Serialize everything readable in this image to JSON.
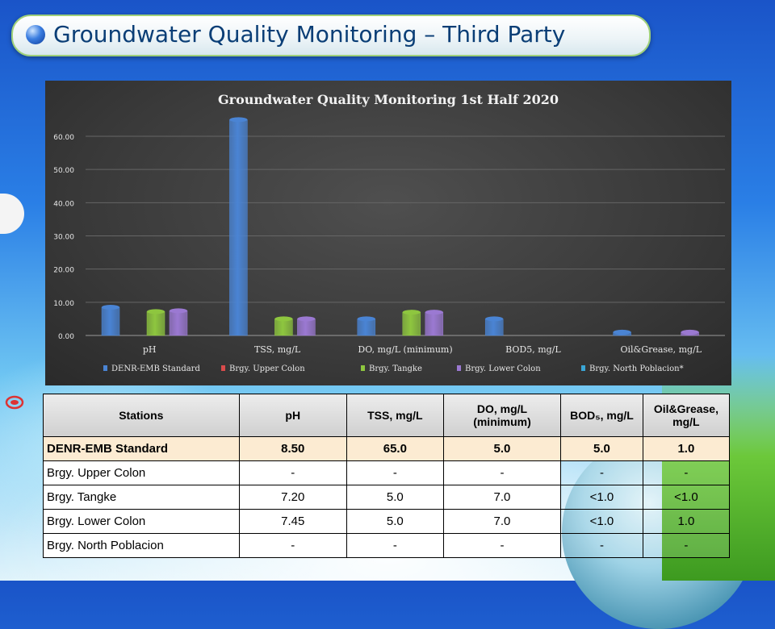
{
  "slide": {
    "title": "Groundwater Quality Monitoring – Third Party"
  },
  "colors": {
    "denr": "#4a84d4",
    "upper_colon": "#d94b4b",
    "tangke": "#8ec63f",
    "lower_colon": "#9b79d2",
    "north_poblacion": "#3aa6d6"
  },
  "chart_data": {
    "type": "bar",
    "title": "Groundwater Quality Monitoring 1st Half 2020",
    "categories": [
      "pH",
      "TSS, mg/L",
      "DO, mg/L (minimum)",
      "BOD5, mg/L",
      "Oil&Grease, mg/L"
    ],
    "ylim": [
      0,
      60
    ],
    "yticks": [
      "0.00",
      "10.00",
      "20.00",
      "30.00",
      "40.00",
      "50.00",
      "60.00"
    ],
    "ytick_values": [
      0,
      10,
      20,
      30,
      40,
      50,
      60
    ],
    "grid": true,
    "legend_position": "bottom",
    "series": [
      {
        "name": "DENR-EMB Standard",
        "values": [
          8.5,
          65.0,
          5.0,
          5.0,
          1.0
        ]
      },
      {
        "name": "Brgy. Upper Colon",
        "values": [
          null,
          null,
          null,
          null,
          null
        ]
      },
      {
        "name": "Brgy. Tangke",
        "values": [
          7.2,
          5.0,
          7.0,
          null,
          null
        ]
      },
      {
        "name": "Brgy. Lower Colon",
        "values": [
          7.45,
          5.0,
          7.0,
          null,
          1.0
        ]
      },
      {
        "name": "Brgy. North Poblacion*",
        "values": [
          null,
          null,
          null,
          null,
          null
        ]
      }
    ]
  },
  "table": {
    "headers": {
      "stations": "Stations",
      "ph": "pH",
      "tss": "TSS, mg/L",
      "do": "DO, mg/L (minimum)",
      "bod": "BOD₅, mg/L",
      "oil": "Oil&Grease, mg/L"
    },
    "rows": [
      {
        "station": "DENR-EMB Standard",
        "ph": "8.50",
        "tss": "65.0",
        "do": "5.0",
        "bod": "5.0",
        "oil": "1.0"
      },
      {
        "station": "Brgy. Upper Colon",
        "ph": "-",
        "tss": "-",
        "do": "-",
        "bod": "-",
        "oil": "-"
      },
      {
        "station": "Brgy. Tangke",
        "ph": "7.20",
        "tss": "5.0",
        "do": "7.0",
        "bod": "<1.0",
        "oil": "<1.0"
      },
      {
        "station": "Brgy. Lower Colon",
        "ph": "7.45",
        "tss": "5.0",
        "do": "7.0",
        "bod": "<1.0",
        "oil": "1.0"
      },
      {
        "station": "Brgy. North Poblacion",
        "ph": "-",
        "tss": "-",
        "do": "-",
        "bod": "-",
        "oil": "-"
      }
    ]
  }
}
